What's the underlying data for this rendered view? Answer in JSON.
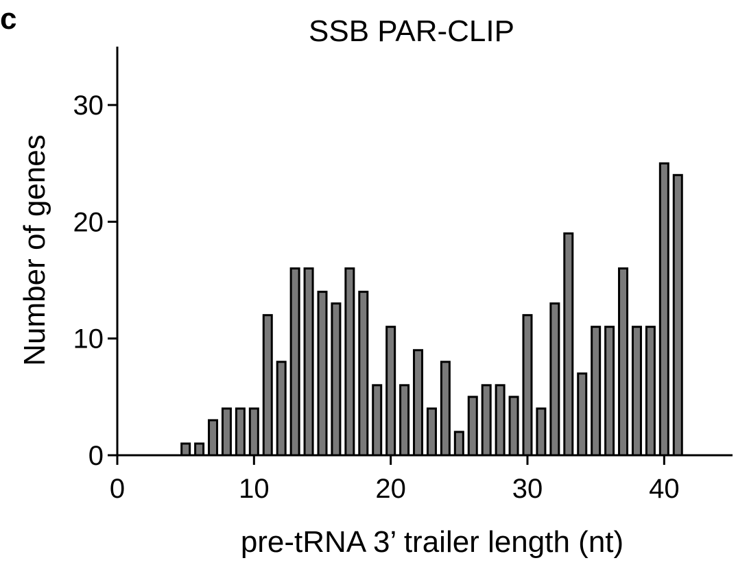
{
  "panel_label": "c",
  "chart_data": {
    "type": "bar",
    "title": "SSB PAR-CLIP",
    "xlabel": "pre-tRNA 3’ trailer length (nt)",
    "ylabel": "Number of genes",
    "xlim": [
      0,
      45
    ],
    "ylim": [
      0,
      35
    ],
    "xticks": [
      0,
      10,
      20,
      30,
      40
    ],
    "yticks": [
      0,
      10,
      20,
      30
    ],
    "bar_color": "#7a7a7a",
    "x": [
      5,
      6,
      7,
      8,
      9,
      10,
      11,
      12,
      13,
      14,
      15,
      16,
      17,
      18,
      19,
      20,
      21,
      22,
      23,
      24,
      25,
      26,
      27,
      28,
      29,
      30,
      31,
      32,
      33,
      34,
      35,
      36,
      37,
      38,
      39,
      40,
      41
    ],
    "values": [
      1,
      1,
      3,
      4,
      4,
      4,
      12,
      8,
      16,
      16,
      14,
      13,
      16,
      14,
      6,
      11,
      6,
      9,
      4,
      8,
      2,
      5,
      6,
      6,
      5,
      12,
      4,
      13,
      19,
      7,
      11,
      11,
      16,
      11,
      11,
      25,
      24
    ]
  }
}
